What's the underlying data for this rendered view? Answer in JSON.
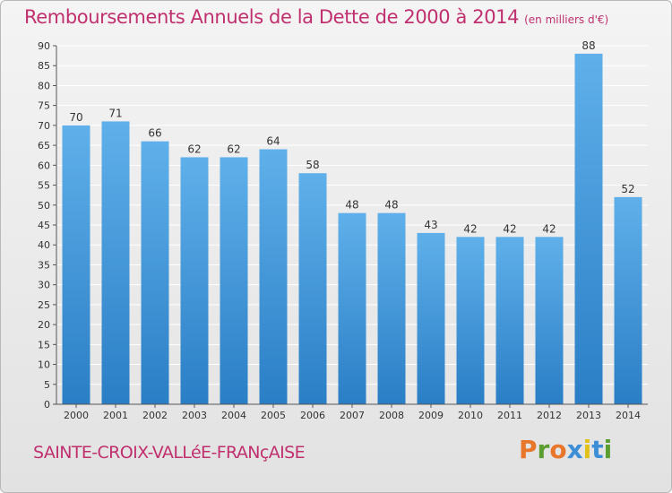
{
  "header": {
    "title": "Remboursements Annuels de la Dette de 2000 à 2014",
    "unit": "(en milliers d'€)"
  },
  "footer": {
    "commune": "SAINTE-CROIX-VALLéE-FRANçAISE",
    "logo_letters": [
      "P",
      "r",
      "o",
      "x",
      "i",
      "t",
      "i"
    ]
  },
  "colors": {
    "title": "#c0306e",
    "bar_top": "#5fb0ea",
    "bar_bottom": "#2a7ec5",
    "grid": "#ffffff",
    "logo": [
      "#e8762b",
      "#5a9e2f",
      "#e8762b",
      "#3c8fd6",
      "#e0c21a",
      "#3c8fd6",
      "#5a9e2f"
    ]
  },
  "chart_data": {
    "type": "bar",
    "title": "Remboursements Annuels de la Dette de 2000 à 2014",
    "xlabel": "",
    "ylabel": "",
    "ylim": [
      0,
      90
    ],
    "ytick_step": 5,
    "categories": [
      "2000",
      "2001",
      "2002",
      "2003",
      "2004",
      "2005",
      "2006",
      "2007",
      "2008",
      "2009",
      "2010",
      "2011",
      "2012",
      "2013",
      "2014"
    ],
    "values": [
      70,
      71,
      66,
      62,
      62,
      64,
      58,
      48,
      48,
      43,
      42,
      42,
      42,
      88,
      52
    ],
    "data_labels": [
      "70",
      "71",
      "66",
      "62",
      "62",
      "64",
      "58",
      "48",
      "48",
      "43",
      "42",
      "42",
      "42",
      "88",
      "52"
    ],
    "grid": true
  }
}
